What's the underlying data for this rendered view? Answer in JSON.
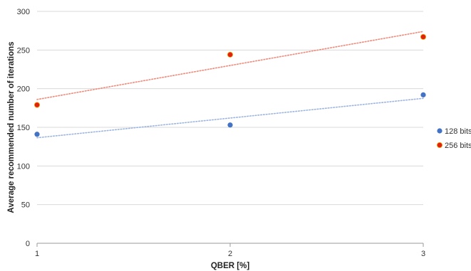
{
  "chart_data": {
    "type": "scatter",
    "title": "",
    "xlabel": "QBER [%]",
    "ylabel": "Average recommended number of iterations",
    "xlim": [
      1,
      3
    ],
    "ylim": [
      0,
      300
    ],
    "x_ticks": [
      1,
      2,
      3
    ],
    "y_ticks": [
      0,
      50,
      100,
      150,
      200,
      250,
      300
    ],
    "grid": "horizontal",
    "legend_position": "right",
    "trendline": "linear dotted",
    "series": [
      {
        "name": "128 bits",
        "color": "#4472c4",
        "trend_color": "#9db5e0",
        "x": [
          1,
          2,
          3
        ],
        "values": [
          141,
          153,
          192
        ]
      },
      {
        "name": "256 bits",
        "color": "#e02010",
        "trend_color": "#f08a7a",
        "x": [
          1,
          2,
          3
        ],
        "values": [
          179,
          244,
          267
        ]
      }
    ]
  }
}
